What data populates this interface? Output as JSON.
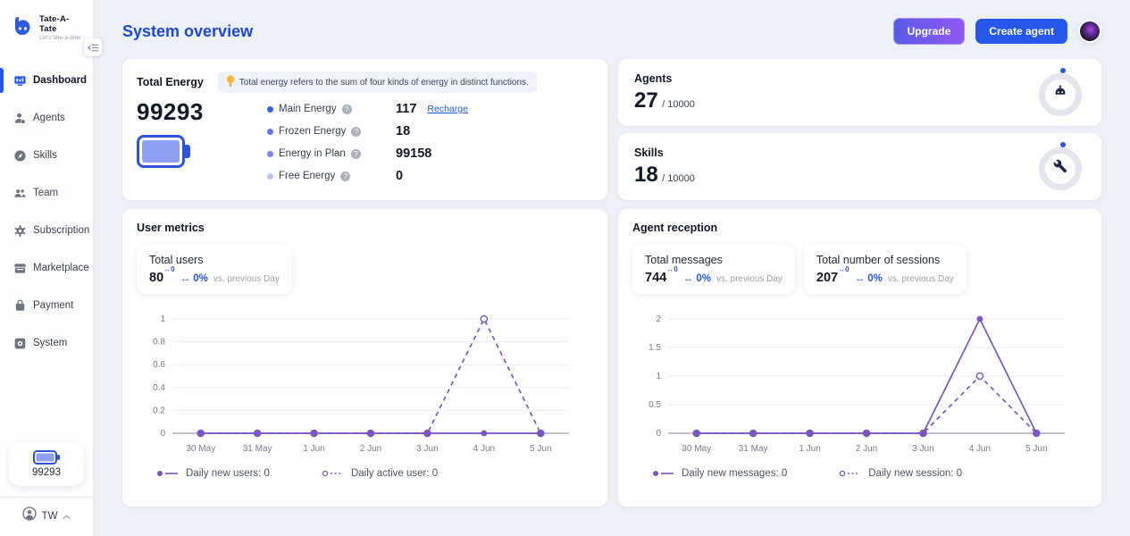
{
  "sidebar": {
    "brand": {
      "name": "Tate-A-Tate",
      "tagline": "Let's tête-à-tête!"
    },
    "items": [
      {
        "label": "Dashboard",
        "icon": "dashboard-icon",
        "active": true
      },
      {
        "label": "Agents",
        "icon": "agents-icon",
        "active": false
      },
      {
        "label": "Skills",
        "icon": "skills-icon",
        "active": false
      },
      {
        "label": "Team",
        "icon": "team-icon",
        "active": false
      },
      {
        "label": "Subscription",
        "icon": "subscription-icon",
        "active": false
      },
      {
        "label": "Marketplace",
        "icon": "marketplace-icon",
        "active": false
      },
      {
        "label": "Payment",
        "icon": "payment-icon",
        "active": false
      },
      {
        "label": "System",
        "icon": "system-icon",
        "active": false
      }
    ],
    "energy_widget": {
      "value": "99293",
      "icon": "battery-icon"
    },
    "user": {
      "name": "TW",
      "icon": "user-avatar-icon"
    }
  },
  "header": {
    "title": "System overview",
    "upgrade_label": "Upgrade",
    "create_agent_label": "Create agent"
  },
  "energy_card": {
    "title": "Total Energy",
    "tooltip": "Total energy refers to the sum of four kinds of energy in distinct functions.",
    "total": "99293",
    "rows": [
      {
        "label": "Main Energy",
        "value": "117",
        "link": "Recharge",
        "dot_color": "#2f62e9"
      },
      {
        "label": "Frozen Energy",
        "value": "18",
        "dot_color": "#5f77ee"
      },
      {
        "label": "Energy in Plan",
        "value": "99158",
        "dot_color": "#7486ef"
      },
      {
        "label": "Free Energy",
        "value": "0",
        "dot_color": "#bcc7f8"
      }
    ]
  },
  "agents_card": {
    "title": "Agents",
    "value": "27",
    "separator": "/",
    "max": "10000"
  },
  "skills_card": {
    "title": "Skills",
    "value": "18",
    "separator": "/",
    "max": "10000"
  },
  "user_metrics_card": {
    "title": "User metrics",
    "stats": [
      {
        "label": "Total users",
        "value": "80",
        "delta_sup": "↔0",
        "delta": "↔ 0%",
        "caption": "vs. previous Day"
      }
    ]
  },
  "agent_reception_card": {
    "title": "Agent reception",
    "stats": [
      {
        "label": "Total messages",
        "value": "744",
        "delta_sup": "↔0",
        "delta": "↔ 0%",
        "caption": "vs. previous Day"
      },
      {
        "label": "Total number of sessions",
        "value": "207",
        "delta_sup": "↔0",
        "delta": "↔ 0%",
        "caption": "vs. previous Day"
      }
    ]
  },
  "chart_data": [
    {
      "type": "line",
      "title": "User metrics",
      "categories": [
        "30 May",
        "31 May",
        "1 Jun",
        "2 Jun",
        "3 Jun",
        "4 Jun",
        "5 Jun"
      ],
      "series": [
        {
          "name": "Daily new users: 0",
          "values": [
            0,
            0,
            0,
            0,
            0,
            0,
            0
          ],
          "style": "solid",
          "marker": "filled"
        },
        {
          "name": "Daily active user: 0",
          "values": [
            0,
            0,
            0,
            0,
            0,
            1,
            0
          ],
          "style": "dashed",
          "marker": "open"
        }
      ],
      "ylim": [
        0,
        1
      ],
      "yticks": [
        0,
        0.2,
        0.4,
        0.6,
        0.8,
        1
      ],
      "xlabel": "",
      "ylabel": "",
      "grid": true,
      "legend_position": "bottom",
      "line_color": "#7a55c3"
    },
    {
      "type": "line",
      "title": "Agent reception",
      "categories": [
        "30 May",
        "31 May",
        "1 Jun",
        "2 Jun",
        "3 Jun",
        "4 Jun",
        "5 Jun"
      ],
      "series": [
        {
          "name": "Daily new messages: 0",
          "values": [
            0,
            0,
            0,
            0,
            0,
            2,
            0
          ],
          "style": "solid",
          "marker": "filled"
        },
        {
          "name": "Daily new session: 0",
          "values": [
            0,
            0,
            0,
            0,
            0,
            1,
            0
          ],
          "style": "dashed",
          "marker": "open"
        }
      ],
      "ylim": [
        0,
        2
      ],
      "yticks": [
        0,
        0.5,
        1,
        1.5,
        2
      ],
      "xlabel": "",
      "ylabel": "",
      "grid": true,
      "legend_position": "bottom",
      "line_color": "#7a55c3"
    }
  ],
  "colors": {
    "accent_blue": "#2557e8",
    "title_blue": "#1b48d9",
    "chart_purple": "#7a55c3",
    "battery_border": "#2d52dd",
    "battery_fill": "#8da0f2"
  }
}
